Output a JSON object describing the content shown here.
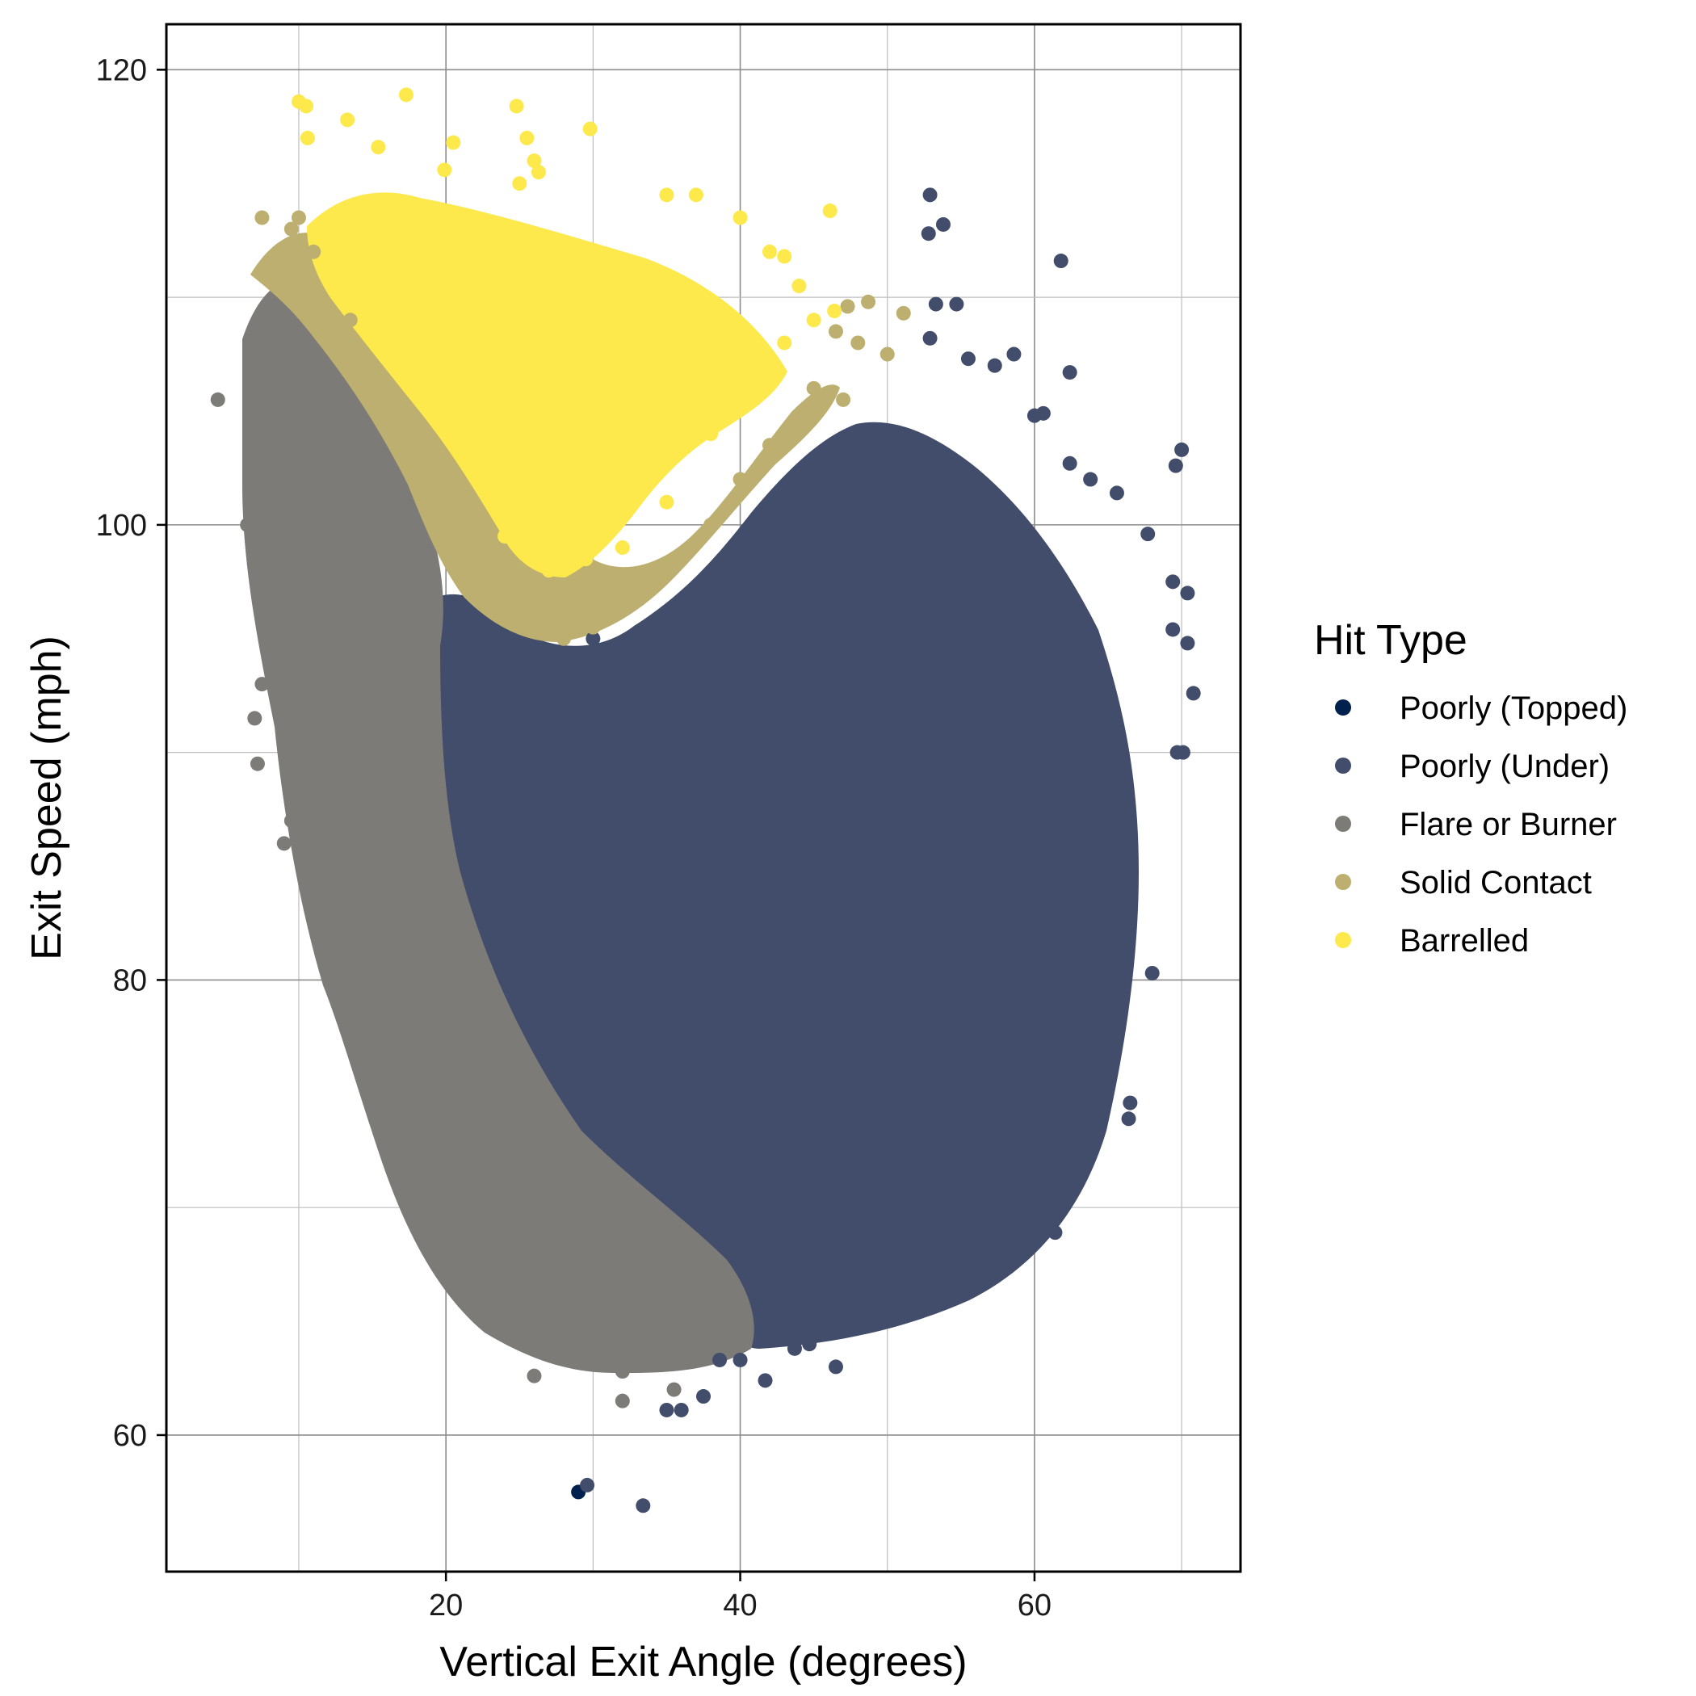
{
  "chart_data": {
    "type": "scatter",
    "title": "",
    "xlabel": "Vertical Exit Angle (degrees)",
    "ylabel": "Exit Speed (mph)",
    "xlim": [
      1,
      74
    ],
    "ylim": [
      54,
      122
    ],
    "xticks": [
      20,
      40,
      60
    ],
    "yticks": [
      60,
      80,
      100,
      120
    ],
    "grid": true,
    "legend": {
      "title": "Hit Type",
      "placement": "right"
    },
    "series": [
      {
        "name": "Poorly (Topped)",
        "color": "#00204D",
        "points": [
          [
            29.0,
            57.5
          ]
        ]
      },
      {
        "name": "Poorly (Under)",
        "color": "#414D6B",
        "points": [
          [
            29.6,
            57.8
          ],
          [
            33.4,
            56.9
          ],
          [
            35.0,
            61.1
          ],
          [
            36.0,
            61.1
          ],
          [
            37.5,
            61.7
          ],
          [
            41.7,
            62.4
          ],
          [
            46.5,
            63.0
          ],
          [
            52.9,
            114.5
          ],
          [
            53.8,
            113.2
          ],
          [
            52.8,
            112.8
          ],
          [
            61.8,
            111.6
          ],
          [
            53.3,
            109.7
          ],
          [
            54.7,
            109.7
          ],
          [
            52.9,
            108.2
          ],
          [
            58.6,
            107.5
          ],
          [
            55.5,
            107.3
          ],
          [
            57.3,
            107.0
          ],
          [
            62.4,
            106.7
          ],
          [
            60.0,
            104.8
          ],
          [
            60.6,
            104.9
          ],
          [
            70.0,
            103.3
          ],
          [
            69.6,
            102.6
          ],
          [
            62.4,
            102.7
          ],
          [
            63.8,
            102.0
          ],
          [
            65.6,
            101.4
          ],
          [
            67.7,
            99.6
          ],
          [
            70.4,
            97.0
          ],
          [
            69.4,
            97.5
          ],
          [
            69.4,
            95.4
          ],
          [
            70.4,
            94.8
          ],
          [
            70.8,
            92.6
          ],
          [
            70.1,
            90.0
          ],
          [
            69.7,
            90.0
          ],
          [
            68.0,
            80.3
          ],
          [
            66.5,
            74.6
          ],
          [
            66.4,
            73.9
          ],
          [
            62.5,
            71.5
          ],
          [
            61.4,
            68.9
          ],
          [
            60.0,
            69.2
          ],
          [
            55.6,
            70.0
          ],
          [
            53.4,
            66.5
          ],
          [
            49.3,
            65.1
          ],
          [
            44.7,
            64.0
          ],
          [
            43.7,
            63.8
          ],
          [
            40.0,
            63.3
          ],
          [
            38.6,
            63.3
          ],
          [
            48.0,
            93.0
          ],
          [
            45.0,
            85.0
          ],
          [
            50.0,
            75.0
          ],
          [
            55.0,
            90.0
          ],
          [
            60.0,
            85.0
          ],
          [
            58.0,
            95.0
          ],
          [
            47.0,
            100.0
          ],
          [
            42.0,
            98.0
          ],
          [
            40.0,
            80.0
          ],
          [
            35.0,
            90.0
          ],
          [
            30.0,
            95.0
          ],
          [
            62.0,
            80.0
          ],
          [
            65.0,
            88.0
          ],
          [
            56.0,
            100.0
          ]
        ]
      },
      {
        "name": "Flare or Burner",
        "color": "#7C7B78",
        "points": [
          [
            4.5,
            105.5
          ],
          [
            7.0,
            108.0
          ],
          [
            6.5,
            100.0
          ],
          [
            7.5,
            93.0
          ],
          [
            7.0,
            91.5
          ],
          [
            7.2,
            89.5
          ],
          [
            9.5,
            87.0
          ],
          [
            9.0,
            86.0
          ],
          [
            12.0,
            84.0
          ],
          [
            13.5,
            81.5
          ],
          [
            15.5,
            79.5
          ],
          [
            18.0,
            75.0
          ],
          [
            21.0,
            71.0
          ],
          [
            22.0,
            69.5
          ],
          [
            25.0,
            67.0
          ],
          [
            27.0,
            65.0
          ],
          [
            27.5,
            64.0
          ],
          [
            28.5,
            63.5
          ],
          [
            30.0,
            63.5
          ],
          [
            32.0,
            62.8
          ],
          [
            32.0,
            61.5
          ],
          [
            35.5,
            62.0
          ],
          [
            26.0,
            62.6
          ],
          [
            19.0,
            90.0
          ],
          [
            17.0,
            80.0
          ],
          [
            23.0,
            72.0
          ],
          [
            15.0,
            95.0
          ],
          [
            12.0,
            100.0
          ],
          [
            10.0,
            105.0
          ],
          [
            38.0,
            66.0
          ]
        ]
      },
      {
        "name": "Solid Contact",
        "color": "#BCAF6F",
        "points": [
          [
            7.5,
            113.5
          ],
          [
            8.5,
            111.5
          ],
          [
            9.5,
            113.0
          ],
          [
            48.7,
            109.8
          ],
          [
            51.1,
            109.3
          ],
          [
            47.3,
            109.6
          ],
          [
            46.5,
            108.5
          ],
          [
            48.0,
            108.0
          ],
          [
            50.0,
            107.5
          ],
          [
            45.0,
            106.0
          ],
          [
            47.0,
            105.5
          ],
          [
            42.0,
            103.5
          ],
          [
            38.0,
            100.0
          ],
          [
            34.0,
            97.5
          ],
          [
            30.0,
            95.5
          ],
          [
            26.0,
            95.5
          ],
          [
            22.0,
            97.0
          ],
          [
            19.5,
            100.0
          ],
          [
            16.5,
            105.0
          ],
          [
            13.5,
            109.0
          ],
          [
            11.0,
            112.0
          ],
          [
            10.0,
            113.5
          ],
          [
            40.0,
            102.0
          ],
          [
            44.0,
            104.5
          ],
          [
            28.0,
            95.0
          ]
        ]
      },
      {
        "name": "Barrelled",
        "color": "#FDE94C",
        "points": [
          [
            10.0,
            118.6
          ],
          [
            10.5,
            118.4
          ],
          [
            17.3,
            118.9
          ],
          [
            24.8,
            118.4
          ],
          [
            13.3,
            117.8
          ],
          [
            29.8,
            117.4
          ],
          [
            10.6,
            117.0
          ],
          [
            20.5,
            116.8
          ],
          [
            25.5,
            117.0
          ],
          [
            15.4,
            116.6
          ],
          [
            19.9,
            115.6
          ],
          [
            26.0,
            116.0
          ],
          [
            26.3,
            115.5
          ],
          [
            25.0,
            115.0
          ],
          [
            35.0,
            114.5
          ],
          [
            37.0,
            114.5
          ],
          [
            40.0,
            113.5
          ],
          [
            46.1,
            113.8
          ],
          [
            42.0,
            112.0
          ],
          [
            43.0,
            111.8
          ],
          [
            44.0,
            110.5
          ],
          [
            46.4,
            109.4
          ],
          [
            45.0,
            109.0
          ],
          [
            43.0,
            108.0
          ],
          [
            40.0,
            106.0
          ],
          [
            38.0,
            104.0
          ],
          [
            35.0,
            101.0
          ],
          [
            32.0,
            99.0
          ],
          [
            29.5,
            98.5
          ],
          [
            27.0,
            98.0
          ],
          [
            24.0,
            99.5
          ],
          [
            22.0,
            102.5
          ],
          [
            20.0,
            105.0
          ],
          [
            17.0,
            109.0
          ],
          [
            14.0,
            111.5
          ],
          [
            12.0,
            113.0
          ],
          [
            30.0,
            108.0
          ],
          [
            25.0,
            110.0
          ],
          [
            35.0,
            108.0
          ],
          [
            28.0,
            104.0
          ]
        ]
      }
    ]
  }
}
